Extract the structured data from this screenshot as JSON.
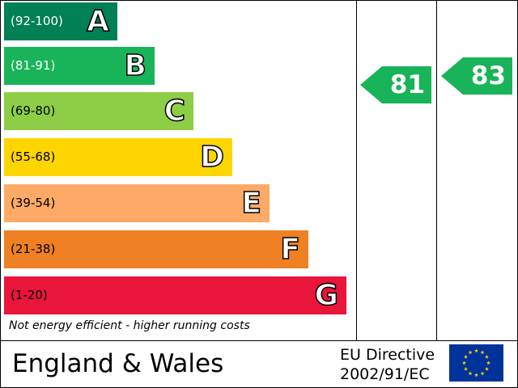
{
  "bands": [
    {
      "range": "(92-100)",
      "letter": "A",
      "color": "#008054",
      "text_color": "#ffffff"
    },
    {
      "range": "(81-91)",
      "letter": "B",
      "color": "#19b459",
      "text_color": "#ffffff"
    },
    {
      "range": "(69-80)",
      "letter": "C",
      "color": "#8dce46",
      "text_color": "#000000"
    },
    {
      "range": "(55-68)",
      "letter": "D",
      "color": "#ffd500",
      "text_color": "#000000"
    },
    {
      "range": "(39-54)",
      "letter": "E",
      "color": "#fcaa65",
      "text_color": "#000000"
    },
    {
      "range": "(21-38)",
      "letter": "F",
      "color": "#ef8023",
      "text_color": "#000000"
    },
    {
      "range": "(1-20)",
      "letter": "G",
      "color": "#e9153b",
      "text_color": "#000000"
    }
  ],
  "current": {
    "value": "81",
    "color": "#19b459"
  },
  "potential": {
    "value": "83",
    "color": "#19b459"
  },
  "note": "Not energy efficient - higher running costs",
  "footer": {
    "region": "England & Wales",
    "directive_line1": "EU Directive",
    "directive_line2": "2002/91/EC",
    "flag_icon": "eu-flag-icon"
  }
}
